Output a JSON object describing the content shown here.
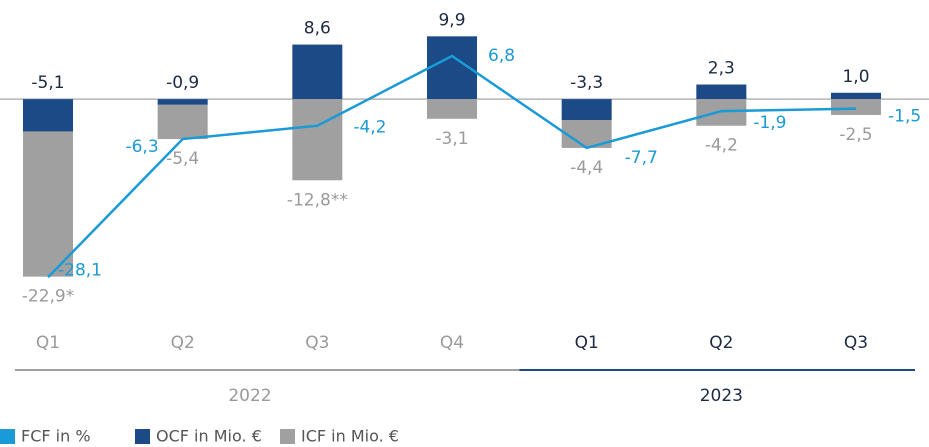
{
  "chart_data": {
    "type": "stacked-bar-line",
    "groups": [
      {
        "label": "2022",
        "color": "#a0a0a0",
        "categories": [
          "Q1",
          "Q2",
          "Q3",
          "Q4"
        ]
      },
      {
        "label": "2023",
        "color": "#1b4a86",
        "categories": [
          "Q1",
          "Q2",
          "Q3"
        ]
      }
    ],
    "series": [
      {
        "name": "FCF in %",
        "color": "#1a9ad6",
        "kind": "line",
        "values": [
          -28.1,
          -6.3,
          -4.2,
          6.8,
          -7.7,
          -1.9,
          -1.5
        ],
        "value_labels": [
          "-28,1",
          "-6,3",
          "-4,2",
          "6,8",
          "-7,7",
          "-1,9",
          "-1,5"
        ]
      },
      {
        "name": "OCF in Mio. €",
        "color": "#1b4a86",
        "kind": "bar",
        "values": [
          -5.1,
          -0.9,
          8.6,
          9.9,
          -3.3,
          2.3,
          1.0
        ],
        "value_labels": [
          "-5,1",
          "-0,9",
          "8,6",
          "9,9",
          "-3,3",
          "2,3",
          "1,0"
        ]
      },
      {
        "name": "ICF in Mio. €",
        "color": "#a0a0a0",
        "kind": "bar",
        "values": [
          -22.9,
          -5.4,
          -12.8,
          -3.1,
          -4.4,
          -4.2,
          -2.5
        ],
        "value_labels": [
          "-22,9*",
          "-5,4",
          "-12,8**",
          "-3,1",
          "-4,4",
          "-4,2",
          "-2,5"
        ]
      }
    ],
    "ylim": [
      -32,
      15
    ]
  }
}
